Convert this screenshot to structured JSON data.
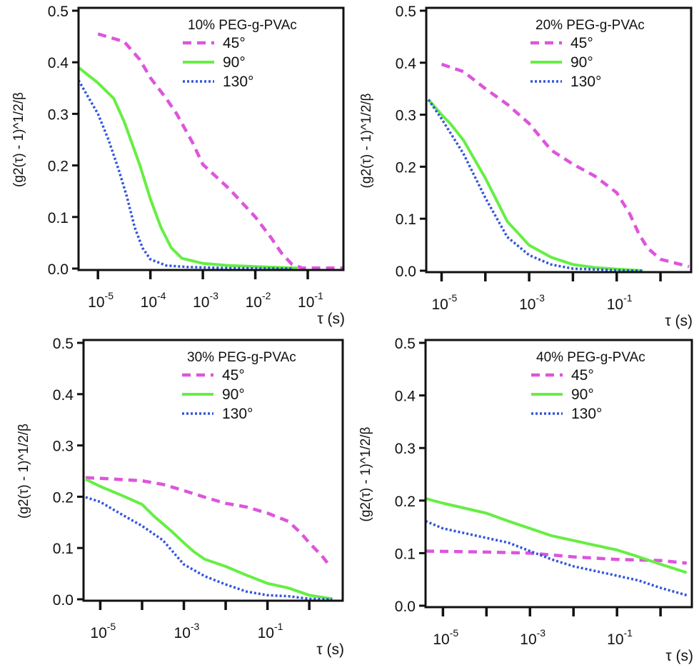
{
  "chart_data": [
    {
      "type": "line",
      "title": "10% PEG-g-PVAc",
      "xlabel": "τ (s)",
      "ylabel": "(g2(τ) - 1)^1/2/β",
      "x_scale": "log10",
      "xlim_log10": [
        -5.37,
        -0.32
      ],
      "ylim": [
        0,
        0.5
      ],
      "yticks": [
        "0.0",
        "0.1",
        "0.2",
        "0.3",
        "0.4",
        "0.5"
      ],
      "xticks_log10": [
        -5,
        -4,
        -3,
        -2,
        -1
      ],
      "xtick_labels": [
        {
          "exp": -5,
          "base": "10",
          "sup": "-5"
        },
        {
          "exp": -4,
          "base": "10",
          "sup": "-4"
        },
        {
          "exp": -3,
          "base": "10",
          "sup": "-3"
        },
        {
          "exp": -2,
          "base": "10",
          "sup": "-2"
        },
        {
          "exp": -1,
          "base": "10",
          "sup": "-1"
        }
      ],
      "legend_placement": "top-right",
      "series": [
        {
          "name": "45°",
          "style": "dashed",
          "color": "#dd55dd",
          "points": [
            [
              -5,
              0.455
            ],
            [
              -4.5,
              0.44
            ],
            [
              -4.2,
              0.405
            ],
            [
              -4,
              0.37
            ],
            [
              -3.7,
              0.33
            ],
            [
              -3.5,
              0.3
            ],
            [
              -3.2,
              0.245
            ],
            [
              -3,
              0.202
            ],
            [
              -2.5,
              0.155
            ],
            [
              -2,
              0.1
            ],
            [
              -1.7,
              0.06
            ],
            [
              -1.5,
              0.03
            ],
            [
              -1.3,
              0.008
            ],
            [
              -1.1,
              0.001
            ],
            [
              -0.33,
              0.001
            ]
          ]
        },
        {
          "name": "90°",
          "style": "solid",
          "color": "#66ee44",
          "points": [
            [
              -5.37,
              0.39
            ],
            [
              -5.0,
              0.36
            ],
            [
              -4.7,
              0.33
            ],
            [
              -4.5,
              0.285
            ],
            [
              -4.2,
              0.2
            ],
            [
              -4,
              0.135
            ],
            [
              -3.8,
              0.08
            ],
            [
              -3.6,
              0.04
            ],
            [
              -3.4,
              0.02
            ],
            [
              -3,
              0.01
            ],
            [
              -2.5,
              0.006
            ],
            [
              -2,
              0.004
            ],
            [
              -1.5,
              0.002
            ],
            [
              -1.2,
              0.001
            ]
          ]
        },
        {
          "name": "130°",
          "style": "dotted",
          "color": "#3355dd",
          "points": [
            [
              -5.37,
              0.365
            ],
            [
              -5,
              0.3
            ],
            [
              -4.8,
              0.25
            ],
            [
              -4.6,
              0.19
            ],
            [
              -4.45,
              0.14
            ],
            [
              -4.3,
              0.08
            ],
            [
              -4.15,
              0.04
            ],
            [
              -4,
              0.018
            ],
            [
              -3.7,
              0.006
            ],
            [
              -3.3,
              0.003
            ],
            [
              -2.5,
              0.001
            ],
            [
              -1.3,
              0.0
            ]
          ]
        }
      ]
    },
    {
      "type": "line",
      "title": "20% PEG-g-PVAc",
      "xlabel": "τ (s)",
      "ylabel": "(g2(τ) - 1)^1/2/β",
      "x_scale": "log10",
      "xlim_log10": [
        -5.35,
        0.7
      ],
      "ylim": [
        0,
        0.5
      ],
      "yticks": [
        "0.0",
        "0.1",
        "0.2",
        "0.3",
        "0.4",
        "0.5"
      ],
      "xticks_log10": [
        -5,
        -4,
        -3,
        -2,
        -1,
        0
      ],
      "xtick_labels": [
        {
          "exp": -5,
          "base": "10",
          "sup": "-5"
        },
        {
          "exp": -3,
          "base": "10",
          "sup": "-3"
        },
        {
          "exp": -1,
          "base": "10",
          "sup": "-1"
        }
      ],
      "legend_placement": "top-right",
      "series": [
        {
          "name": "45°",
          "style": "dashed",
          "color": "#dd55dd",
          "points": [
            [
              -5,
              0.397
            ],
            [
              -4.5,
              0.383
            ],
            [
              -4,
              0.35
            ],
            [
              -3.5,
              0.32
            ],
            [
              -3,
              0.283
            ],
            [
              -2.5,
              0.232
            ],
            [
              -2,
              0.205
            ],
            [
              -1.5,
              0.182
            ],
            [
              -1,
              0.15
            ],
            [
              -0.7,
              0.109
            ],
            [
              -0.5,
              0.072
            ],
            [
              -0.3,
              0.044
            ],
            [
              0,
              0.022
            ],
            [
              0.65,
              0.008
            ]
          ]
        },
        {
          "name": "90°",
          "style": "solid",
          "color": "#66ee44",
          "points": [
            [
              -5.3,
              0.329
            ],
            [
              -5,
              0.3
            ],
            [
              -4.8,
              0.283
            ],
            [
              -4.5,
              0.251
            ],
            [
              -4,
              0.178
            ],
            [
              -3.5,
              0.095
            ],
            [
              -3,
              0.049
            ],
            [
              -2.5,
              0.026
            ],
            [
              -2,
              0.012
            ],
            [
              -1.5,
              0.006
            ],
            [
              -1,
              0.003
            ],
            [
              -0.4,
              0.0
            ]
          ]
        },
        {
          "name": "130°",
          "style": "dotted",
          "color": "#3355dd",
          "points": [
            [
              -5.3,
              0.329
            ],
            [
              -5,
              0.292
            ],
            [
              -4.5,
              0.225
            ],
            [
              -4,
              0.14
            ],
            [
              -3.5,
              0.065
            ],
            [
              -3,
              0.03
            ],
            [
              -2.5,
              0.012
            ],
            [
              -2,
              0.004
            ],
            [
              -1,
              0.001
            ],
            [
              -0.4,
              0.0
            ]
          ]
        }
      ]
    },
    {
      "type": "line",
      "title": "30% PEG-g-PVAc",
      "xlabel": "τ (s)",
      "ylabel": "(g2(τ) - 1)^1/2/β",
      "x_scale": "log10",
      "xlim_log10": [
        -5.4,
        0.8
      ],
      "ylim": [
        0,
        0.5
      ],
      "yticks": [
        "0.0",
        "0.1",
        "0.2",
        "0.3",
        "0.4",
        "0.5"
      ],
      "xticks_log10": [
        -5,
        -4,
        -3,
        -2,
        -1,
        0
      ],
      "xtick_labels": [
        {
          "exp": -5,
          "base": "10",
          "sup": "-5"
        },
        {
          "exp": -3,
          "base": "10",
          "sup": "-3"
        },
        {
          "exp": -1,
          "base": "10",
          "sup": "-1"
        }
      ],
      "legend_placement": "top-right",
      "series": [
        {
          "name": "45°",
          "style": "dashed",
          "color": "#dd55dd",
          "points": [
            [
              -5.35,
              0.237
            ],
            [
              -5,
              0.236
            ],
            [
              -4,
              0.231
            ],
            [
              -3.5,
              0.224
            ],
            [
              -3,
              0.212
            ],
            [
              -2.5,
              0.199
            ],
            [
              -2,
              0.187
            ],
            [
              -1.5,
              0.18
            ],
            [
              -1,
              0.168
            ],
            [
              -0.5,
              0.152
            ],
            [
              -0.2,
              0.129
            ],
            [
              0,
              0.11
            ],
            [
              0.3,
              0.085
            ],
            [
              0.5,
              0.064
            ]
          ]
        },
        {
          "name": "90°",
          "style": "solid",
          "color": "#66ee44",
          "points": [
            [
              -5.35,
              0.234
            ],
            [
              -5,
              0.22
            ],
            [
              -4.5,
              0.203
            ],
            [
              -4,
              0.185
            ],
            [
              -3.7,
              0.161
            ],
            [
              -3.3,
              0.133
            ],
            [
              -3,
              0.11
            ],
            [
              -2.75,
              0.092
            ],
            [
              -2.5,
              0.078
            ],
            [
              -2,
              0.064
            ],
            [
              -1.5,
              0.047
            ],
            [
              -1,
              0.031
            ],
            [
              -0.5,
              0.022
            ],
            [
              0,
              0.008
            ],
            [
              0.55,
              0.001
            ]
          ]
        },
        {
          "name": "130°",
          "style": "dotted",
          "color": "#3355dd",
          "points": [
            [
              -5.35,
              0.199
            ],
            [
              -5,
              0.19
            ],
            [
              -4.5,
              0.166
            ],
            [
              -4,
              0.143
            ],
            [
              -3.5,
              0.115
            ],
            [
              -3,
              0.068
            ],
            [
              -2.5,
              0.045
            ],
            [
              -2,
              0.029
            ],
            [
              -1.5,
              0.015
            ],
            [
              -1,
              0.008
            ],
            [
              -0.5,
              0.006
            ],
            [
              0,
              0.001
            ],
            [
              0.55,
              0.0
            ]
          ]
        }
      ]
    },
    {
      "type": "line",
      "title": "40% PEG-g-PVAc",
      "xlabel": "τ (s)",
      "ylabel": "(g2(τ) - 1)^1/2/β",
      "x_scale": "log10",
      "xlim_log10": [
        -5.4,
        0.72
      ],
      "ylim": [
        0,
        0.5
      ],
      "yticks": [
        "0.0",
        "0.1",
        "0.2",
        "0.3",
        "0.4",
        "0.5"
      ],
      "xticks_log10": [
        -5,
        -4,
        -3,
        -2,
        -1,
        0
      ],
      "xtick_labels": [
        {
          "exp": -5,
          "base": "10",
          "sup": "-5"
        },
        {
          "exp": -3,
          "base": "10",
          "sup": "-3"
        },
        {
          "exp": -1,
          "base": "10",
          "sup": "-1"
        }
      ],
      "legend_placement": "top-right",
      "series": [
        {
          "name": "45°",
          "style": "dashed",
          "color": "#dd55dd",
          "points": [
            [
              -5.4,
              0.104
            ],
            [
              -4,
              0.102
            ],
            [
              -3,
              0.1
            ],
            [
              -2,
              0.093
            ],
            [
              -1,
              0.088
            ],
            [
              0,
              0.086
            ],
            [
              0.6,
              0.081
            ]
          ]
        },
        {
          "name": "90°",
          "style": "solid",
          "color": "#66ee44",
          "points": [
            [
              -5.4,
              0.204
            ],
            [
              -5,
              0.195
            ],
            [
              -4,
              0.176
            ],
            [
              -3.5,
              0.161
            ],
            [
              -3,
              0.147
            ],
            [
              -2.5,
              0.133
            ],
            [
              -2,
              0.124
            ],
            [
              -1.5,
              0.115
            ],
            [
              -1,
              0.106
            ],
            [
              -0.5,
              0.093
            ],
            [
              0,
              0.079
            ],
            [
              0.6,
              0.063
            ]
          ]
        },
        {
          "name": "130°",
          "style": "dotted",
          "color": "#3355dd",
          "points": [
            [
              -5.4,
              0.161
            ],
            [
              -5,
              0.147
            ],
            [
              -4,
              0.129
            ],
            [
              -3.5,
              0.12
            ],
            [
              -3,
              0.104
            ],
            [
              -2.5,
              0.088
            ],
            [
              -2,
              0.075
            ],
            [
              -1.5,
              0.066
            ],
            [
              -1,
              0.057
            ],
            [
              -0.5,
              0.048
            ],
            [
              0,
              0.034
            ],
            [
              0.6,
              0.02
            ]
          ]
        }
      ]
    }
  ]
}
